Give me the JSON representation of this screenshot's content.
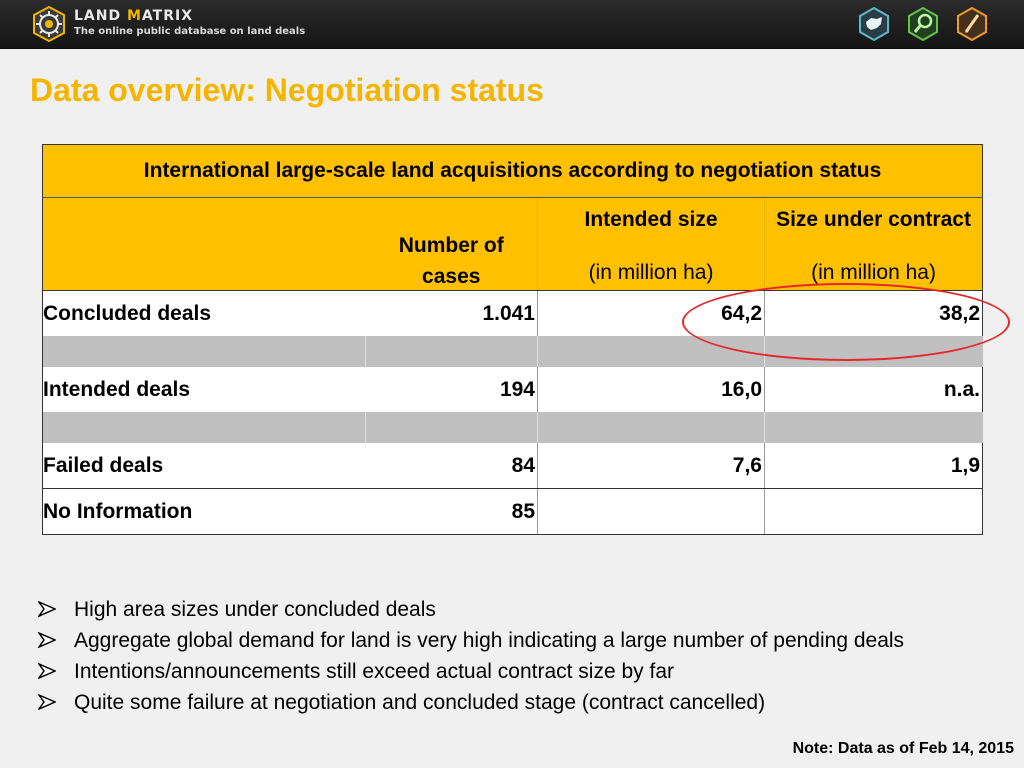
{
  "header": {
    "logo_title_part1": "L",
    "logo_title_part2": "AND ",
    "logo_title_part3": "M",
    "logo_title_part4": "ATRIX",
    "logo_subtitle": "The online public database on land deals",
    "icons": [
      "map-icon",
      "search-map-icon",
      "pencil-icon"
    ],
    "accent_color": "#f5b400"
  },
  "page_title": "Data overview: Negotiation status",
  "table": {
    "caption": "International large-scale land acquisitions according to negotiation status",
    "columns": {
      "cases_line1": "Number of",
      "cases_line2": "cases",
      "intended_top": "Intended size",
      "intended_unit": "(in million ha)",
      "contract_top": "Size under contract",
      "contract_unit": "(in million ha)"
    },
    "rows": [
      {
        "label": "Concluded deals",
        "cases": "1.041",
        "intended": "64,2",
        "contract": "38,2"
      },
      {
        "label": "Intended deals",
        "cases": "194",
        "intended": "16,0",
        "contract": "n.a."
      },
      {
        "label": "Failed deals",
        "cases": "84",
        "intended": "7,6",
        "contract": "1,9"
      },
      {
        "label": "No Information",
        "cases": "85",
        "intended": "",
        "contract": ""
      }
    ],
    "header_color": "#ffc000",
    "spacer_color": "#c0c0c0",
    "highlight_color": "#e8262a"
  },
  "bullets": [
    "High area sizes under concluded deals",
    "Aggregate global demand for land is very high indicating a large number of pending deals",
    "Intentions/announcements still exceed actual contract size by far",
    "Quite some failure at negotiation and concluded stage (contract cancelled)"
  ],
  "note": "Note:  Data as of Feb  14, 2015"
}
